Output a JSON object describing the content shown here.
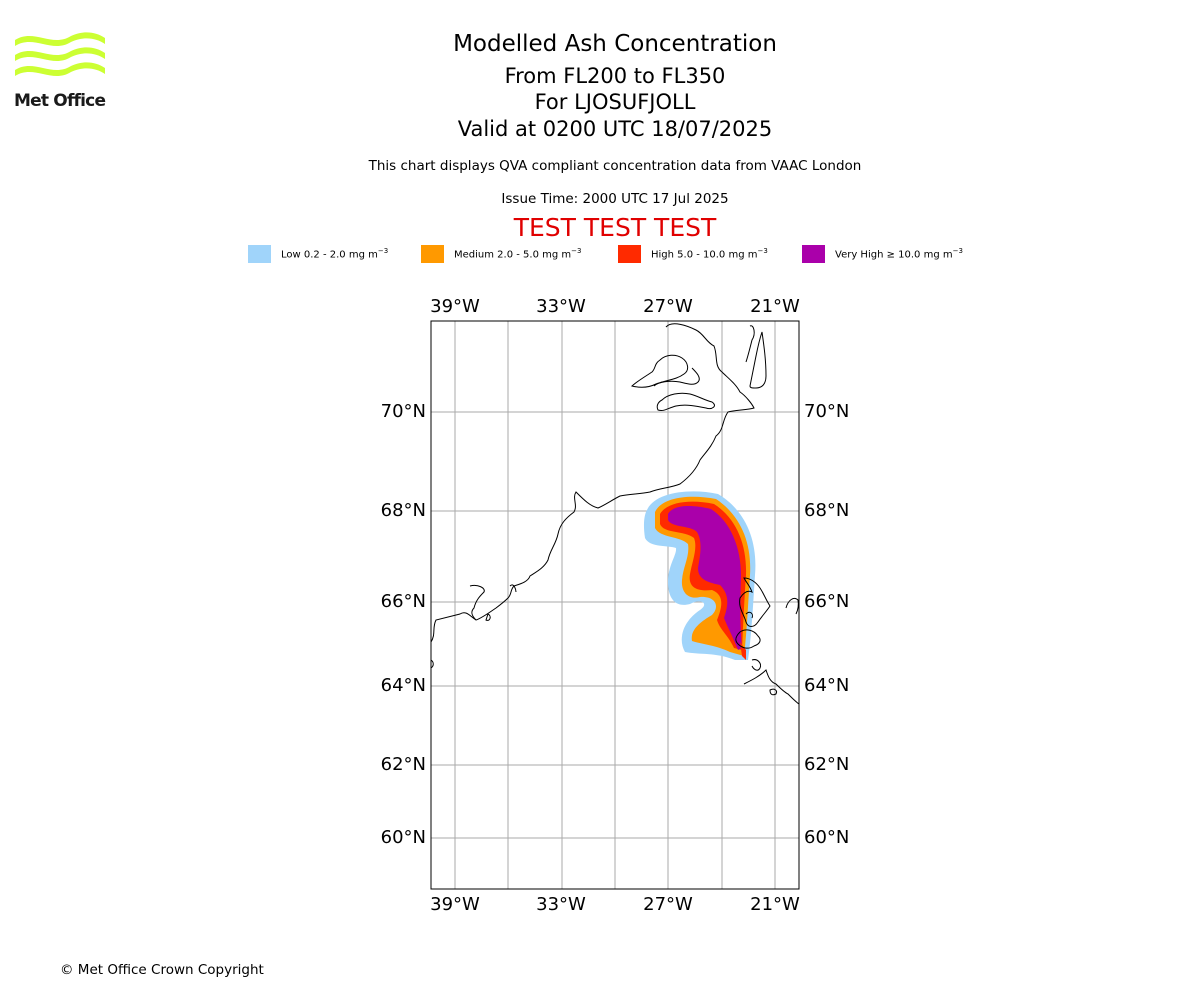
{
  "logo": {
    "text": "Met Office",
    "icon": "met-office-waves-logo",
    "color": "#ccff33"
  },
  "header": {
    "title": "Modelled Ash Concentration",
    "levels": "From FL200 to FL350",
    "volcano": "For LJOSUFJOLL",
    "valid": "Valid at 0200 UTC 18/07/2025",
    "subtitle": "This chart displays QVA compliant concentration data from VAAC London",
    "issue_time": "Issue Time: 2000 UTC 17 Jul 2025",
    "test_banner": "TEST TEST TEST",
    "test_color": "#e00000"
  },
  "legend": [
    {
      "label": "Low 0.2 - 2.0 mg m",
      "color": "#a0d4fa"
    },
    {
      "label": "Medium 2.0 - 5.0 mg m",
      "color": "#ff9900"
    },
    {
      "label": "High 5.0 - 10.0 mg m",
      "color": "#ff2a00"
    },
    {
      "label": "Very High ≥ 10.0 mg m",
      "color": "#aa00aa"
    }
  ],
  "legend_unit_exp": "−3",
  "map": {
    "lon_labels": [
      "39°W",
      "33°W",
      "27°W",
      "21°W"
    ],
    "lat_labels": [
      "70°N",
      "68°N",
      "66°N",
      "64°N",
      "62°N",
      "60°N"
    ],
    "grid_color": "#aaaaaa",
    "coast_color": "#000000"
  },
  "footer": {
    "copyright": "© Met Office Crown Copyright"
  }
}
